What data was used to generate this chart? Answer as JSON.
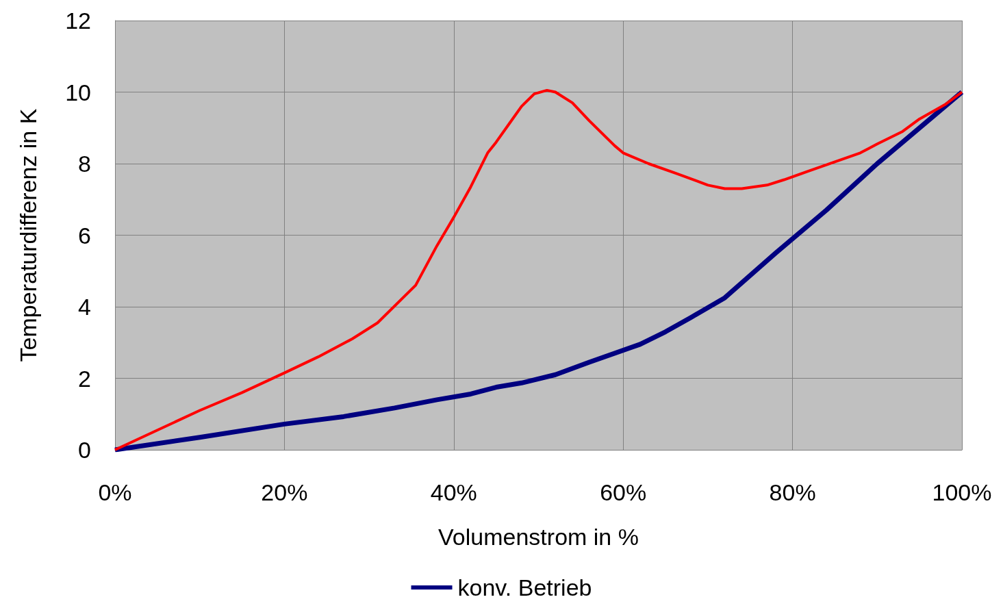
{
  "chart_data": {
    "type": "line",
    "xlabel": "Volumenstrom in %",
    "ylabel": "Temperaturdifferenz in K",
    "xlim": [
      0,
      100
    ],
    "ylim": [
      0,
      12
    ],
    "xticks": [
      {
        "value": 0,
        "label": "0%"
      },
      {
        "value": 20,
        "label": "20%"
      },
      {
        "value": 40,
        "label": "40%"
      },
      {
        "value": 60,
        "label": "60%"
      },
      {
        "value": 80,
        "label": "80%"
      },
      {
        "value": 100,
        "label": "100%"
      }
    ],
    "yticks": [
      0,
      2,
      4,
      6,
      8,
      10,
      12
    ],
    "grid": true,
    "legend": "bottom",
    "marker": "none",
    "line_style": "solid",
    "series": [
      {
        "name": "konv. Betrieb",
        "color": "#000080",
        "x": [
          0,
          10,
          20,
          27,
          33,
          38,
          42,
          45,
          48,
          52,
          56,
          62,
          65,
          68,
          72,
          78,
          84,
          90,
          100
        ],
        "values": [
          0,
          0.35,
          0.72,
          0.93,
          1.17,
          1.4,
          1.56,
          1.75,
          1.87,
          2.1,
          2.45,
          2.95,
          3.3,
          3.7,
          4.25,
          5.5,
          6.7,
          8.0,
          10
        ]
      },
      {
        "color": "#ff0000",
        "x": [
          0,
          5,
          10,
          15,
          20,
          24,
          28,
          31,
          34,
          35.5,
          38,
          40,
          42,
          44,
          45,
          46.5,
          48,
          49.5,
          51,
          52,
          54,
          56,
          59,
          60,
          63,
          66,
          70,
          72,
          74,
          77,
          79,
          82,
          85,
          88,
          90,
          93,
          95,
          98,
          100
        ],
        "values": [
          0,
          0.55,
          1.1,
          1.6,
          2.15,
          2.6,
          3.1,
          3.55,
          4.25,
          4.6,
          5.7,
          6.5,
          7.35,
          8.3,
          8.6,
          9.1,
          9.6,
          9.95,
          10.05,
          10.0,
          9.7,
          9.2,
          8.5,
          8.3,
          8.0,
          7.75,
          7.4,
          7.3,
          7.3,
          7.4,
          7.55,
          7.8,
          8.05,
          8.3,
          8.55,
          8.9,
          9.25,
          9.65,
          10
        ]
      }
    ]
  }
}
